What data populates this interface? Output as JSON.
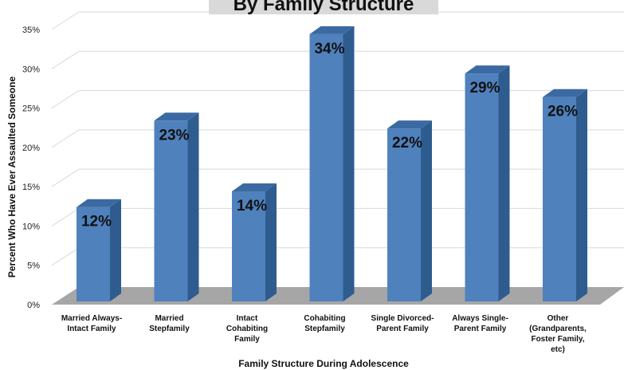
{
  "chart_data": {
    "type": "bar",
    "title": "By Family Structure",
    "xlabel": "Family Structure During Adolescence",
    "ylabel": "Percent Who Have Ever Assaulted Someone",
    "ylim": [
      0,
      35
    ],
    "yticks": [
      "0%",
      "5%",
      "10%",
      "15%",
      "20%",
      "25%",
      "30%",
      "35%"
    ],
    "categories": [
      [
        "Married Always-",
        "Intact Family"
      ],
      [
        "Married",
        "Stepfamily"
      ],
      [
        "Intact",
        "Cohabiting",
        "Family"
      ],
      [
        "Cohabiting",
        "Stepfamily"
      ],
      [
        "Single Divorced-",
        "Parent Family"
      ],
      [
        "Always Single-",
        "Parent Family"
      ],
      [
        "Other",
        "(Grandparents,",
        "Foster Family,",
        "etc)"
      ]
    ],
    "values": [
      12,
      23,
      14,
      34,
      22,
      29,
      26
    ],
    "data_labels": [
      "12%",
      "23%",
      "14%",
      "34%",
      "22%",
      "29%",
      "26%"
    ],
    "grid": true,
    "legend": "none",
    "colors": {
      "bar_front": "#4F81BD",
      "bar_side": "#2F5C8F",
      "bar_top": "#3B6AA3",
      "floor": "#A6A6A6",
      "title_box": "#D9D9D9"
    }
  }
}
